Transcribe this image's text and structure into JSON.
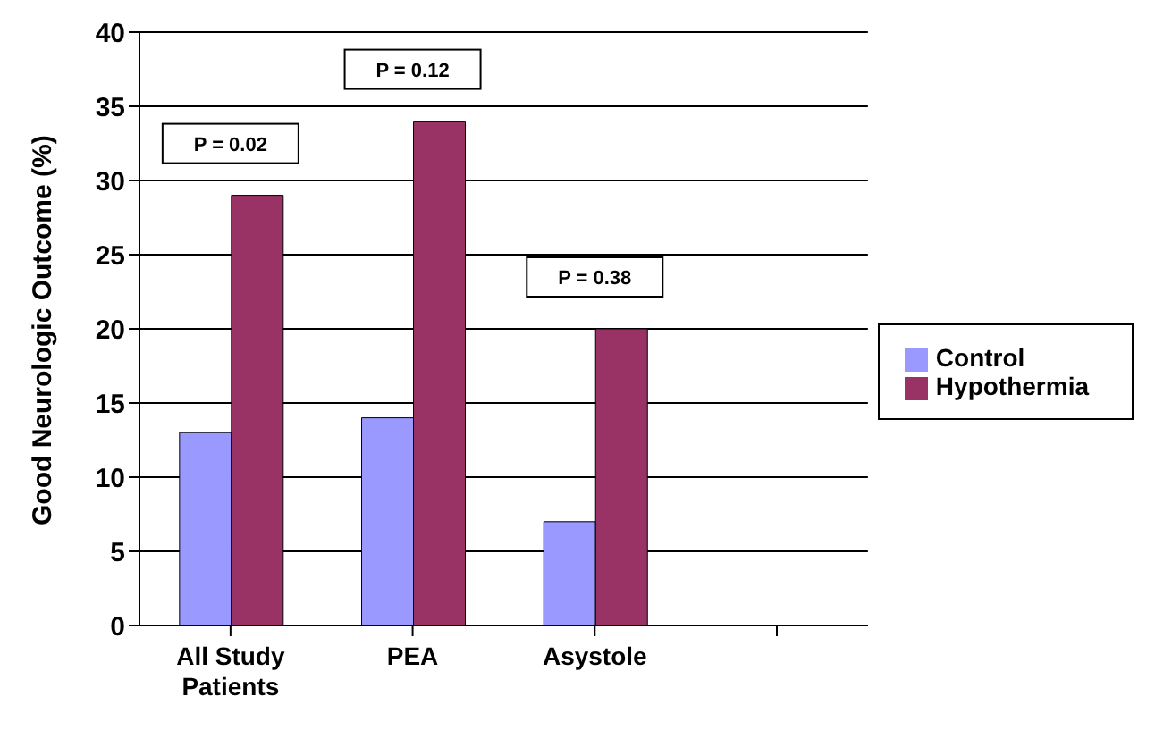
{
  "chart_data": {
    "type": "bar",
    "ylabel": "Good Neurologic Outcome (%)",
    "categories": [
      "All Study Patients",
      "PEA",
      "Asystole",
      null
    ],
    "series": [
      {
        "name": "Control",
        "color": "#9999ff",
        "values": [
          13,
          14,
          7,
          null
        ]
      },
      {
        "name": "Hypothermia",
        "color": "#993366",
        "values": [
          29,
          34,
          20,
          null
        ]
      }
    ],
    "ylim": [
      0,
      40
    ],
    "yticks": [
      0,
      5,
      10,
      15,
      20,
      25,
      30,
      35,
      40
    ],
    "grid": "y",
    "legend": "right",
    "annotations": [
      "P = 0.02",
      "P = 0.12",
      "P = 0.38"
    ]
  }
}
